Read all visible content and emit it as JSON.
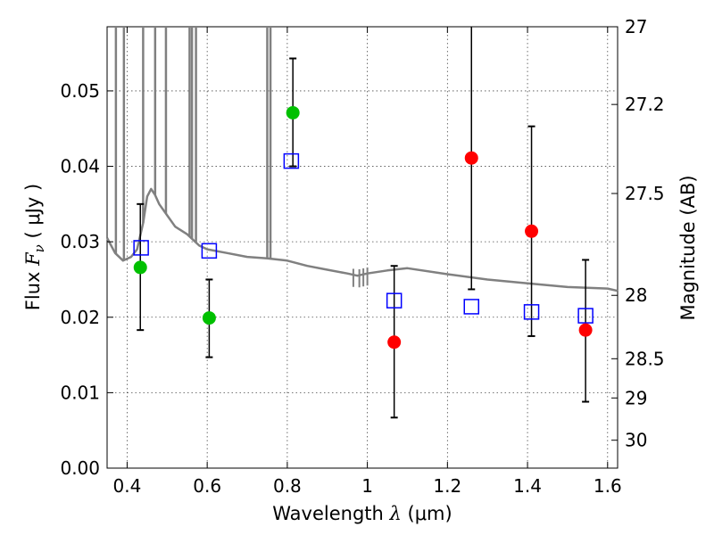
{
  "chart_data": {
    "type": "scatter",
    "xlabel": {
      "prefix": "Wavelength  ",
      "sym": "λ",
      "suffix": " (μm)"
    },
    "ylabel": {
      "prefix": "Flux  ",
      "sym": "F",
      "sub": "ν",
      "suffix": "  ( μJy )"
    },
    "y2label": "Magnitude (AB)",
    "xlim": [
      0.35,
      1.625
    ],
    "ylim": [
      0.0,
      0.0585
    ],
    "xticks": [
      0.4,
      0.6,
      0.8,
      1.0,
      1.2,
      1.4,
      1.6
    ],
    "xtick_labels": [
      "0.4",
      "0.6",
      "0.8",
      "1",
      "1.2",
      "1.4",
      "1.6"
    ],
    "yticks": [
      0.0,
      0.01,
      0.02,
      0.03,
      0.04,
      0.05
    ],
    "ytick_labels": [
      "0.00",
      "0.01",
      "0.02",
      "0.03",
      "0.04",
      "0.05"
    ],
    "right_ticks": [
      {
        "label": "27",
        "flux": 0.0585
      },
      {
        "label": "27.2",
        "flux": 0.0482
      },
      {
        "label": "27.5",
        "flux": 0.0364
      },
      {
        "label": "28",
        "flux": 0.0229
      },
      {
        "label": "28.5",
        "flux": 0.0145
      },
      {
        "label": "29",
        "flux": 0.0093
      },
      {
        "label": "30",
        "flux": 0.0037
      }
    ],
    "grid": true,
    "series": [
      {
        "name": "detections-green",
        "marker": "circle",
        "color": "#00c000",
        "points": [
          {
            "x": 0.433,
            "y": 0.0266,
            "ylo": 0.0183,
            "yhi": 0.035
          },
          {
            "x": 0.605,
            "y": 0.0199,
            "ylo": 0.0147,
            "yhi": 0.025
          },
          {
            "x": 0.814,
            "y": 0.0471,
            "ylo": 0.04,
            "yhi": 0.0543
          }
        ]
      },
      {
        "name": "detections-red",
        "marker": "circle",
        "color": "#ff0000",
        "points": [
          {
            "x": 1.067,
            "y": 0.0167,
            "ylo": 0.0067,
            "yhi": 0.0268
          },
          {
            "x": 1.26,
            "y": 0.0411,
            "ylo": 0.0237,
            "yhi": 0.059
          },
          {
            "x": 1.41,
            "y": 0.0314,
            "ylo": 0.0175,
            "yhi": 0.0453
          },
          {
            "x": 1.545,
            "y": 0.0183,
            "ylo": 0.0088,
            "yhi": 0.0276
          }
        ]
      },
      {
        "name": "model-photometry",
        "marker": "square",
        "color": "#0000ff",
        "points": [
          {
            "x": 0.435,
            "y": 0.0292
          },
          {
            "x": 0.605,
            "y": 0.0288
          },
          {
            "x": 0.81,
            "y": 0.0407
          },
          {
            "x": 1.067,
            "y": 0.0222
          },
          {
            "x": 1.26,
            "y": 0.0214
          },
          {
            "x": 1.41,
            "y": 0.0207
          },
          {
            "x": 1.545,
            "y": 0.0202
          }
        ]
      },
      {
        "name": "model-spectrum",
        "type": "line",
        "color": "#808080",
        "x": [
          0.35,
          0.37,
          0.39,
          0.41,
          0.425,
          0.44,
          0.45,
          0.46,
          0.47,
          0.48,
          0.5,
          0.52,
          0.55,
          0.58,
          0.6,
          0.65,
          0.7,
          0.75,
          0.8,
          0.85,
          0.9,
          0.95,
          0.975,
          1.0,
          1.05,
          1.1,
          1.2,
          1.3,
          1.4,
          1.5,
          1.6,
          1.625
        ],
        "y": [
          0.0305,
          0.0285,
          0.0275,
          0.028,
          0.029,
          0.0325,
          0.036,
          0.037,
          0.0362,
          0.035,
          0.0335,
          0.032,
          0.031,
          0.0295,
          0.029,
          0.0285,
          0.028,
          0.0278,
          0.0275,
          0.0268,
          0.0263,
          0.0258,
          0.0255,
          0.0258,
          0.0262,
          0.0265,
          0.0257,
          0.025,
          0.0245,
          0.024,
          0.0238,
          0.0235
        ],
        "emission_lines": [
          0.372,
          0.392,
          0.44,
          0.47,
          0.497,
          0.556,
          0.562,
          0.572,
          0.75,
          0.758
        ],
        "absorption_features": [
          0.965,
          0.98,
          0.99,
          1.0
        ]
      }
    ]
  }
}
